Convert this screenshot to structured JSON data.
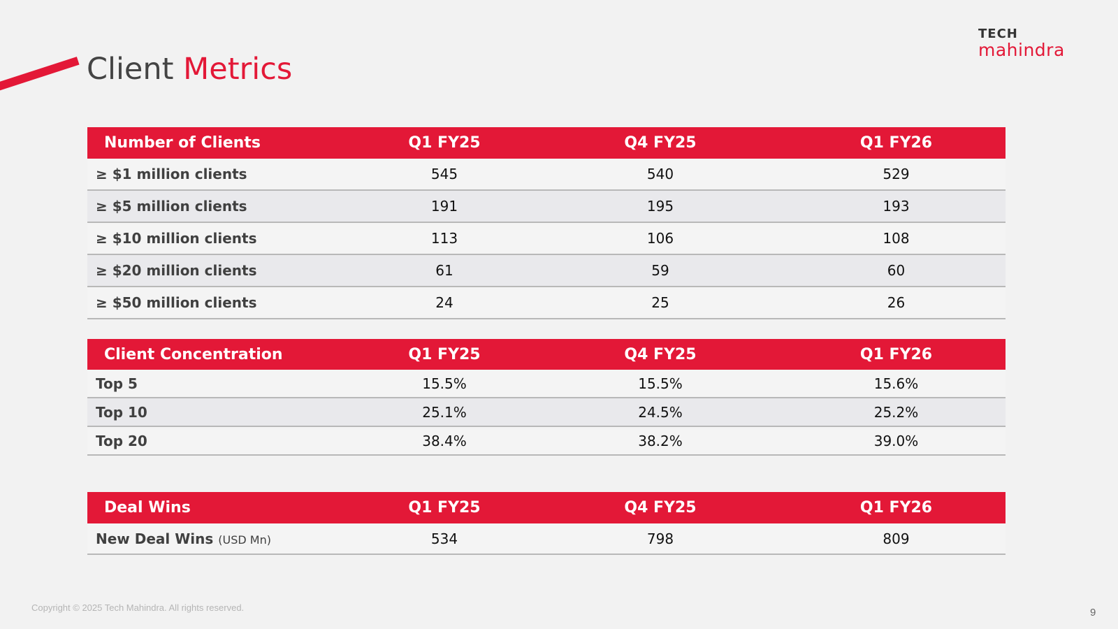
{
  "title": {
    "part1": "Client ",
    "part2": "Metrics"
  },
  "logo": {
    "top": "TECH",
    "bottom": "mahindra"
  },
  "tables": {
    "clients": {
      "headers": [
        "Number of Clients",
        "Q1 FY25",
        "Q4 FY25",
        "Q1 FY26"
      ],
      "rows": [
        [
          "≥ $1 million clients",
          "545",
          "540",
          "529"
        ],
        [
          "≥ $5 million clients",
          "191",
          "195",
          "193"
        ],
        [
          "≥ $10 million clients",
          "113",
          "106",
          "108"
        ],
        [
          "≥ $20 million clients",
          "61",
          "59",
          "60"
        ],
        [
          "≥ $50 million clients",
          "24",
          "25",
          "26"
        ]
      ]
    },
    "concentration": {
      "headers": [
        "Client Concentration",
        "Q1 FY25",
        "Q4 FY25",
        "Q1 FY26"
      ],
      "rows": [
        [
          "Top 5",
          "15.5%",
          "15.5%",
          "15.6%"
        ],
        [
          "Top 10",
          "25.1%",
          "24.5%",
          "25.2%"
        ],
        [
          "Top 20",
          "38.4%",
          "38.2%",
          "39.0%"
        ]
      ]
    },
    "deals": {
      "headers": [
        "Deal Wins",
        "Q1 FY25",
        "Q4 FY25",
        "Q1 FY26"
      ],
      "rows": [
        [
          "New Deal Wins",
          "534",
          "798",
          "809"
        ]
      ],
      "unit": "(USD Mn)"
    }
  },
  "footer": {
    "copyright": "Copyright © 2025 Tech Mahindra. All rights reserved.",
    "page_number": "9"
  },
  "colors": {
    "accent": "#e31837",
    "header_text": "#ffffff",
    "row_alt": "#e9e9ec"
  }
}
